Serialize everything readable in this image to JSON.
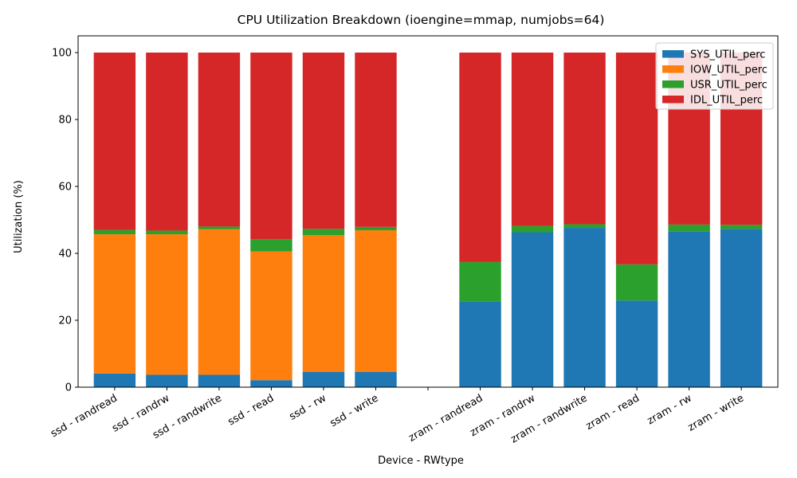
{
  "chart_data": {
    "type": "bar",
    "stacked": true,
    "title": "CPU Utilization Breakdown (ioengine=mmap, numjobs=64)",
    "xlabel": "Device - RWtype",
    "ylabel": "Utilization (%)",
    "ylim": [
      0,
      105
    ],
    "yticks": [
      0,
      20,
      40,
      60,
      80,
      100
    ],
    "legend_position": "top-right",
    "grid": false,
    "categories": [
      "ssd - randread",
      "ssd - randrw",
      "ssd - randwrite",
      "ssd - read",
      "ssd - rw",
      "ssd - write",
      "",
      "zram - randread",
      "zram - randrw",
      "zram - randwrite",
      "zram - read",
      "zram - rw",
      "zram - write"
    ],
    "series": [
      {
        "name": "SYS_UTIL_perc",
        "color": "#1f77b4",
        "values": [
          4.1,
          3.7,
          3.7,
          2.1,
          4.6,
          4.6,
          0,
          25.5,
          46.3,
          47.6,
          25.9,
          46.6,
          47.3
        ]
      },
      {
        "name": "IOW_UTIL_perc",
        "color": "#ff7f0e",
        "values": [
          41.6,
          42.0,
          43.5,
          38.5,
          40.8,
          42.3,
          0,
          0,
          0,
          0,
          0,
          0,
          0
        ]
      },
      {
        "name": "USR_UTIL_perc",
        "color": "#2ca02c",
        "values": [
          1.3,
          1.1,
          0.8,
          3.6,
          1.9,
          1.0,
          0,
          11.9,
          1.9,
          1.1,
          10.8,
          2.0,
          1.2
        ]
      },
      {
        "name": "IDL_UTIL_perc",
        "color": "#d62728",
        "values": [
          53.0,
          53.2,
          52.0,
          55.8,
          52.7,
          52.1,
          0,
          62.6,
          51.8,
          51.3,
          63.3,
          51.4,
          51.5
        ]
      }
    ]
  }
}
